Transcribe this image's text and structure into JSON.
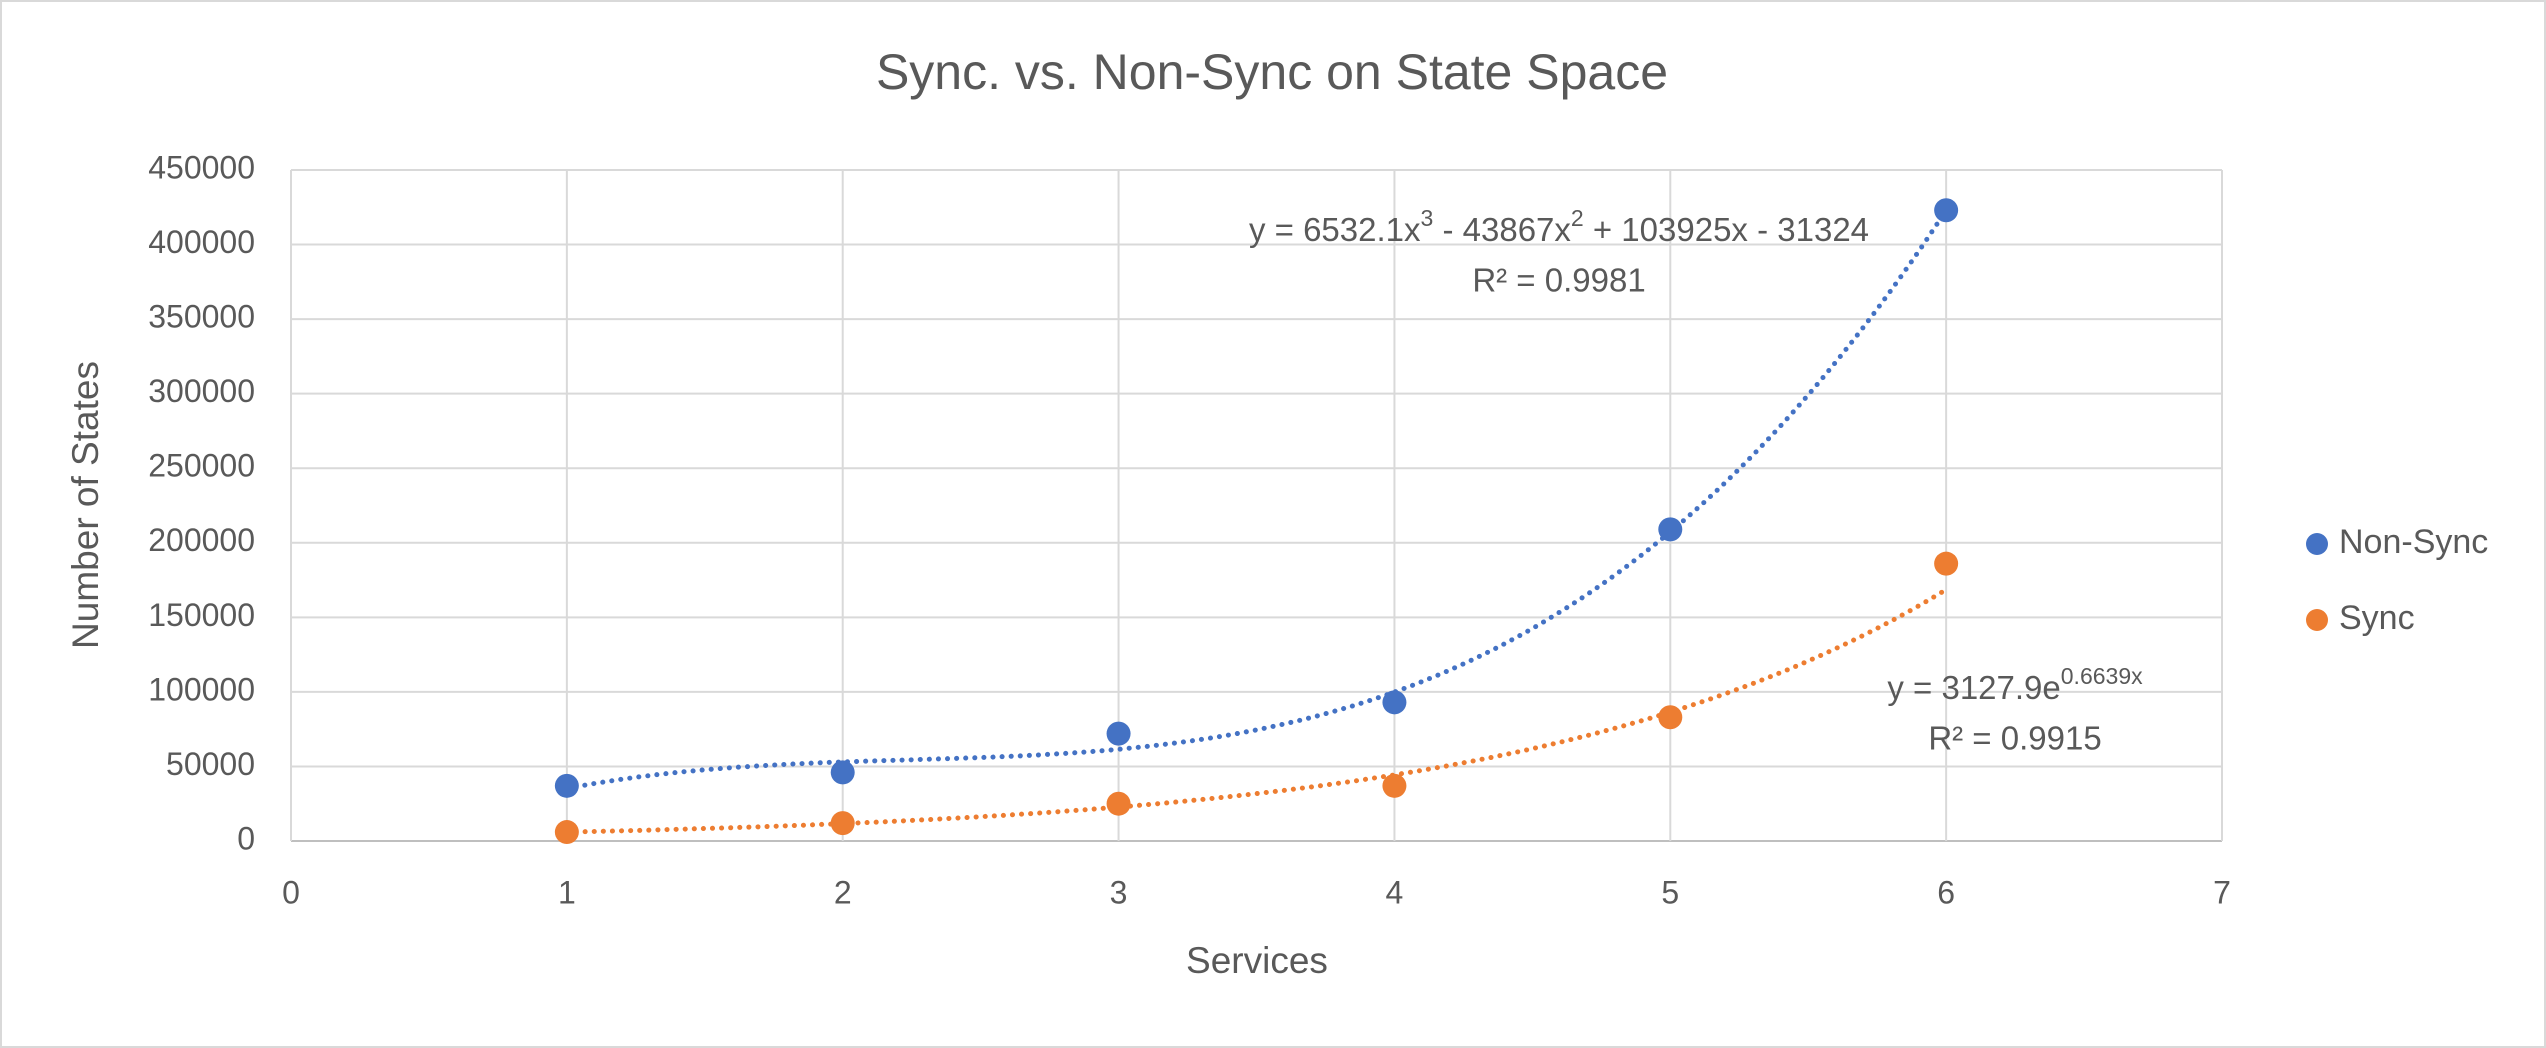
{
  "chart_data": {
    "type": "scatter",
    "title": "Sync. vs. Non-Sync on State Space",
    "x_label": "Services",
    "y_label": "Number of States",
    "xlim": [
      0,
      7
    ],
    "xticks": [
      0,
      1,
      2,
      3,
      4,
      5,
      6,
      7
    ],
    "ylim": [
      0,
      450000
    ],
    "yticks": [
      0,
      50000,
      100000,
      150000,
      200000,
      250000,
      300000,
      350000,
      400000,
      450000
    ],
    "grid": true,
    "legend_position": "right",
    "series": [
      {
        "name": "Non-Sync",
        "color": "#4472c4",
        "x": [
          1,
          2,
          3,
          4,
          5,
          6
        ],
        "values": [
          37000,
          46000,
          72000,
          93000,
          209000,
          423000
        ],
        "trendline": {
          "type": "poly3",
          "equation": [
            {
              "text": "y = 6532.1x"
            },
            {
              "sup": "3"
            },
            {
              "text": " - 43867x"
            },
            {
              "sup": "2"
            },
            {
              "text": " + 103925x - 31324"
            }
          ],
          "r_squared": "R² = 0.9981"
        }
      },
      {
        "name": "Sync",
        "color": "#ed7d31",
        "x": [
          1,
          2,
          3,
          4,
          5,
          6
        ],
        "values": [
          6000,
          12000,
          25000,
          37000,
          83000,
          186000
        ],
        "trendline": {
          "type": "exp",
          "equation": [
            {
              "text": "y = 3127.9e"
            },
            {
              "sup": "0.6639x"
            }
          ],
          "r_squared": "R² = 0.9915"
        }
      }
    ]
  }
}
